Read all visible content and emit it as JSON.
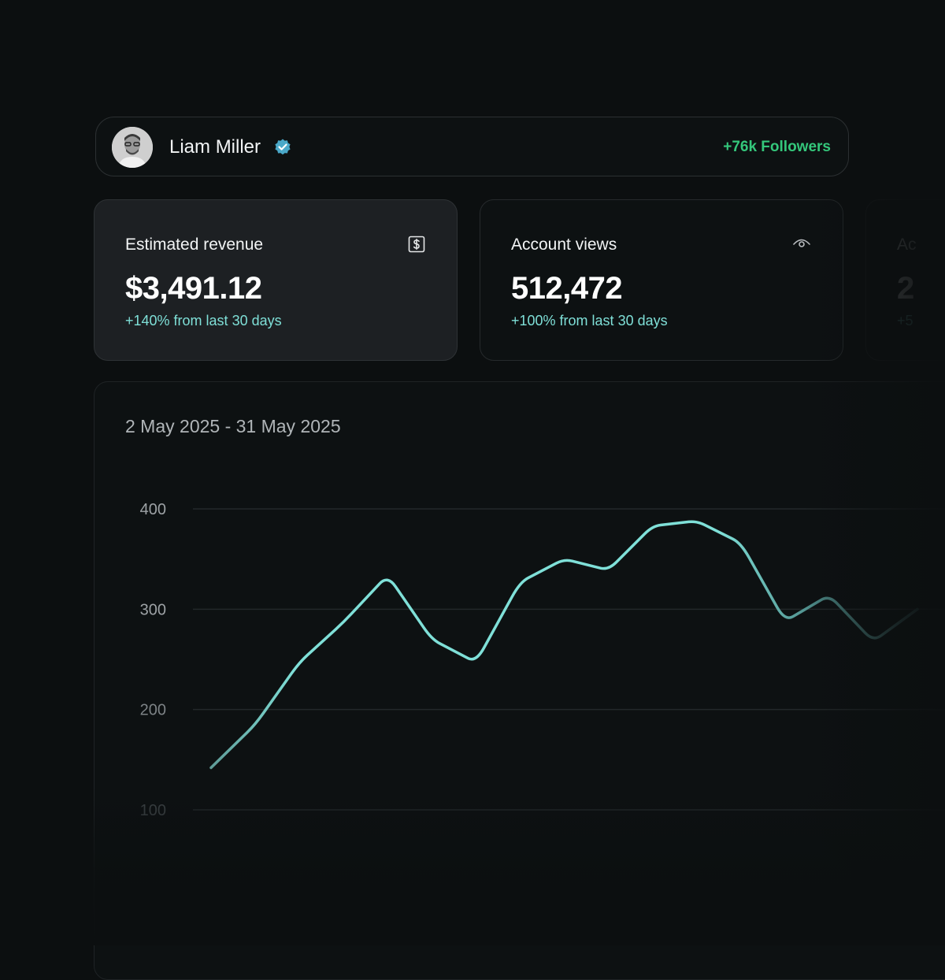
{
  "profile": {
    "name": "Liam Miller",
    "followers": "+76k Followers",
    "icons": {
      "avatar": "avatar",
      "verified": "verified-badge-icon"
    },
    "colors": {
      "followers": "#34c77b",
      "verified": "#4aa8c8"
    }
  },
  "cards": [
    {
      "title": "Estimated revenue",
      "value": "$3,491.12",
      "change": "+140% from last 30 days",
      "icon": "dollar-icon"
    },
    {
      "title": "Account views",
      "value": "512,472",
      "change": "+100% from last 30 days",
      "icon": "eye-icon"
    },
    {
      "title": "Ac",
      "value": "2",
      "change": "+5",
      "icon": ""
    }
  ],
  "chart": {
    "date_range": "2 May 2025 - 31 May 2025",
    "line_color": "#7fe0d8"
  },
  "chart_data": {
    "type": "line",
    "title": "",
    "xlabel": "",
    "ylabel": "",
    "y_ticks": [
      "400",
      "300",
      "200",
      "100"
    ],
    "ylim": [
      100,
      400
    ],
    "grid": true,
    "series": [
      {
        "values": [
          142,
          185,
          247,
          287,
          334,
          270,
          247,
          327,
          350,
          339,
          383,
          388,
          366,
          288,
          314,
          268,
          300
        ]
      }
    ]
  }
}
